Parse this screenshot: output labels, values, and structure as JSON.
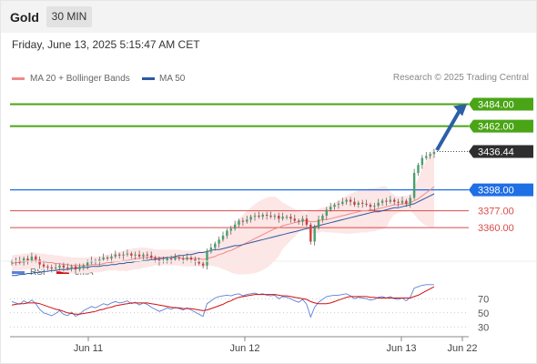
{
  "header": {
    "instrument": "Gold",
    "timeframe": "30 MIN"
  },
  "datetime": "Friday, June 13, 2025 5:15:47 AM CET",
  "legend": {
    "ma20": "MA 20 + Bollinger Bands",
    "ma50": "MA 50"
  },
  "credit": "Research © 2025 Trading Central",
  "rsi_legend": {
    "rsi": "RSI",
    "ma9": "9MA"
  },
  "colors": {
    "green": "#4aa516",
    "blue_level": "#1f6fe5",
    "red_level": "#d84b4b",
    "ma50": "#2b5aa0",
    "ma20": "#f08a8a",
    "band": "#fde6e6",
    "up": "#46a06b",
    "down": "#d03c3c",
    "rsi": "#5b82d9",
    "arrow": "#2c5fa8"
  },
  "chart_data": [
    {
      "type": "candlestick",
      "title": "Gold 30 MIN",
      "x_ticks": [
        "Jun 11",
        "Jun 12",
        "Jun 13",
        "Jun 22"
      ],
      "ylim": [
        3330,
        3500
      ],
      "levels": [
        {
          "value": 3484.0,
          "label": "3484.00",
          "style": "green"
        },
        {
          "value": 3462.0,
          "label": "3462.00",
          "style": "green"
        },
        {
          "value": 3436.44,
          "label": "3436.44",
          "style": "last"
        },
        {
          "value": 3398.0,
          "label": "3398.00",
          "style": "blue"
        },
        {
          "value": 3377.0,
          "label": "3377.00",
          "style": "red"
        },
        {
          "value": 3360.0,
          "label": "3360.00",
          "style": "red"
        }
      ],
      "close": [
        3326,
        3327,
        3325,
        3329,
        3327,
        3331,
        3328,
        3323,
        3321,
        3320,
        3319,
        3320,
        3322,
        3320,
        3319,
        3321,
        3318,
        3320,
        3322,
        3325,
        3327,
        3326,
        3328,
        3330,
        3329,
        3331,
        3333,
        3332,
        3333,
        3334,
        3332,
        3333,
        3331,
        3333,
        3332,
        3330,
        3328,
        3326,
        3327,
        3329,
        3328,
        3330,
        3329,
        3328,
        3330,
        3328,
        3326,
        3324,
        3322,
        3336,
        3340,
        3344,
        3348,
        3352,
        3357,
        3359,
        3363,
        3367,
        3366,
        3368,
        3371,
        3372,
        3371,
        3373,
        3372,
        3371,
        3372,
        3369,
        3371,
        3371,
        3369,
        3367,
        3366,
        3369,
        3363,
        3346,
        3360,
        3368,
        3372,
        3378,
        3381,
        3383,
        3384,
        3386,
        3388,
        3386,
        3383,
        3385,
        3384,
        3383,
        3381,
        3382,
        3385,
        3387,
        3386,
        3388,
        3386,
        3385,
        3387,
        3384,
        3390,
        3415,
        3423,
        3430,
        3432,
        3434,
        3436
      ],
      "ma20": [
        3324,
        3325,
        3325,
        3326,
        3326,
        3327,
        3327,
        3326,
        3326,
        3325,
        3325,
        3324,
        3324,
        3323,
        3323,
        3322,
        3322,
        3322,
        3322,
        3322,
        3323,
        3323,
        3323,
        3324,
        3325,
        3325,
        3326,
        3326,
        3327,
        3327,
        3328,
        3329,
        3329,
        3330,
        3330,
        3330,
        3330,
        3330,
        3330,
        3330,
        3330,
        3330,
        3330,
        3329,
        3329,
        3329,
        3329,
        3329,
        3328,
        3329,
        3330,
        3331,
        3333,
        3334,
        3336,
        3337,
        3339,
        3341,
        3343,
        3345,
        3347,
        3349,
        3351,
        3353,
        3355,
        3357,
        3359,
        3360,
        3362,
        3363,
        3364,
        3365,
        3366,
        3367,
        3367,
        3366,
        3366,
        3367,
        3368,
        3368,
        3369,
        3370,
        3371,
        3372,
        3373,
        3374,
        3375,
        3376,
        3377,
        3377,
        3378,
        3378,
        3379,
        3380,
        3381,
        3382,
        3383,
        3383,
        3384,
        3384,
        3385,
        3387,
        3389,
        3392,
        3395,
        3398,
        3401
      ],
      "ma50": [
        3312,
        3312,
        3313,
        3313,
        3314,
        3314,
        3315,
        3315,
        3316,
        3316,
        3317,
        3317,
        3318,
        3318,
        3318,
        3319,
        3319,
        3320,
        3320,
        3320,
        3321,
        3321,
        3321,
        3322,
        3322,
        3323,
        3323,
        3324,
        3324,
        3325,
        3325,
        3326,
        3326,
        3327,
        3327,
        3328,
        3328,
        3329,
        3329,
        3330,
        3330,
        3331,
        3332,
        3332,
        3333,
        3333,
        3334,
        3335,
        3335,
        3336,
        3337,
        3338,
        3338,
        3339,
        3340,
        3341,
        3342,
        3342,
        3343,
        3344,
        3345,
        3346,
        3347,
        3348,
        3349,
        3350,
        3351,
        3352,
        3353,
        3354,
        3355,
        3356,
        3357,
        3358,
        3359,
        3360,
        3361,
        3362,
        3363,
        3364,
        3365,
        3366,
        3367,
        3368,
        3369,
        3370,
        3371,
        3372,
        3373,
        3374,
        3375,
        3376,
        3376,
        3377,
        3378,
        3379,
        3380,
        3380,
        3381,
        3382,
        3383,
        3384,
        3386,
        3388,
        3390,
        3392,
        3394
      ],
      "projection": {
        "from": 3436,
        "to": 3484
      }
    },
    {
      "type": "line",
      "title": "RSI",
      "series": [
        {
          "name": "RSI",
          "values": [
            66,
            64,
            62,
            67,
            64,
            68,
            63,
            55,
            50,
            48,
            46,
            49,
            53,
            48,
            46,
            51,
            45,
            48,
            53,
            56,
            59,
            57,
            60,
            63,
            61,
            64,
            66,
            64,
            65,
            67,
            63,
            65,
            61,
            64,
            62,
            58,
            55,
            52,
            54,
            57,
            55,
            58,
            56,
            54,
            57,
            54,
            51,
            48,
            45,
            63,
            67,
            71,
            73,
            74,
            75,
            74,
            76,
            77,
            74,
            76,
            77,
            78,
            76,
            77,
            75,
            74,
            75,
            70,
            73,
            72,
            70,
            67,
            65,
            69,
            62,
            44,
            58,
            65,
            69,
            73,
            74,
            75,
            75,
            76,
            77,
            74,
            70,
            72,
            71,
            70,
            68,
            69,
            72,
            73,
            71,
            73,
            70,
            69,
            71,
            67,
            72,
            85,
            87,
            89,
            90,
            90,
            90
          ]
        },
        {
          "name": "9MA",
          "values": [
            61,
            62,
            63,
            63,
            64,
            64,
            64,
            63,
            61,
            59,
            57,
            55,
            54,
            52,
            50,
            49,
            48,
            48,
            49,
            50,
            51,
            52,
            54,
            55,
            57,
            58,
            60,
            61,
            62,
            63,
            64,
            64,
            64,
            64,
            64,
            63,
            62,
            61,
            60,
            59,
            58,
            57,
            57,
            56,
            56,
            56,
            55,
            54,
            53,
            54,
            56,
            58,
            60,
            62,
            65,
            67,
            70,
            72,
            73,
            74,
            75,
            76,
            76,
            76,
            76,
            76,
            76,
            75,
            74,
            74,
            73,
            72,
            71,
            70,
            69,
            66,
            64,
            63,
            63,
            63,
            64,
            66,
            68,
            70,
            72,
            73,
            73,
            73,
            73,
            73,
            72,
            72,
            71,
            71,
            71,
            71,
            71,
            71,
            71,
            71,
            71,
            73,
            75,
            78,
            81,
            84,
            87
          ]
        }
      ],
      "y_ticks": [
        "70",
        "50",
        "30"
      ],
      "ylim": [
        20,
        100
      ]
    }
  ]
}
